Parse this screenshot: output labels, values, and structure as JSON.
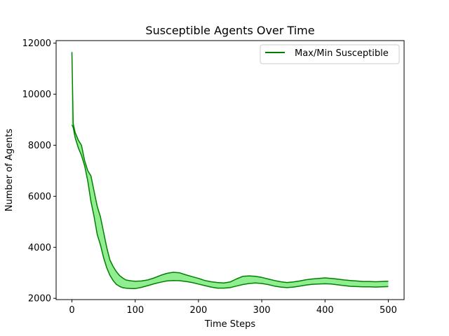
{
  "chart_data": {
    "type": "area",
    "title": "Susceptible Agents Over Time",
    "xlabel": "Time Steps",
    "ylabel": "Number of Agents",
    "xlim": [
      -25,
      525
    ],
    "ylim": [
      1950,
      12100
    ],
    "xticks": [
      0,
      100,
      200,
      300,
      400,
      500
    ],
    "yticks": [
      2000,
      4000,
      6000,
      8000,
      10000,
      12000
    ],
    "grid": false,
    "legend_position": "upper right",
    "series": [
      {
        "name": "Max/Min Susceptible",
        "color": "#008000",
        "fill_color": "#90ee90",
        "x": [
          0,
          2,
          5,
          10,
          15,
          20,
          25,
          30,
          35,
          40,
          45,
          50,
          55,
          60,
          65,
          70,
          75,
          80,
          85,
          90,
          95,
          100,
          110,
          120,
          130,
          140,
          150,
          160,
          170,
          180,
          190,
          200,
          210,
          220,
          230,
          240,
          250,
          260,
          270,
          280,
          290,
          300,
          310,
          320,
          330,
          340,
          350,
          360,
          370,
          380,
          390,
          400,
          410,
          420,
          430,
          440,
          450,
          460,
          470,
          480,
          490,
          500
        ],
        "max": [
          11650,
          8850,
          8500,
          8200,
          8000,
          7400,
          7000,
          6800,
          6200,
          5600,
          5200,
          4600,
          4000,
          3500,
          3250,
          3050,
          2900,
          2800,
          2720,
          2700,
          2680,
          2670,
          2680,
          2720,
          2800,
          2900,
          2980,
          3020,
          3000,
          2920,
          2850,
          2780,
          2700,
          2650,
          2620,
          2600,
          2640,
          2760,
          2860,
          2880,
          2860,
          2820,
          2760,
          2700,
          2650,
          2620,
          2640,
          2680,
          2730,
          2760,
          2780,
          2800,
          2780,
          2750,
          2720,
          2700,
          2680,
          2660,
          2660,
          2650,
          2660,
          2670
        ],
        "min": [
          8800,
          8700,
          8300,
          7900,
          7600,
          7200,
          6600,
          5800,
          5200,
          4500,
          4100,
          3600,
          3200,
          2900,
          2700,
          2550,
          2470,
          2420,
          2400,
          2390,
          2380,
          2380,
          2430,
          2500,
          2570,
          2630,
          2680,
          2700,
          2690,
          2660,
          2620,
          2560,
          2500,
          2440,
          2400,
          2400,
          2420,
          2480,
          2540,
          2580,
          2600,
          2580,
          2540,
          2480,
          2440,
          2420,
          2440,
          2480,
          2520,
          2550,
          2560,
          2570,
          2560,
          2530,
          2500,
          2470,
          2460,
          2450,
          2450,
          2440,
          2450,
          2460
        ]
      }
    ]
  }
}
